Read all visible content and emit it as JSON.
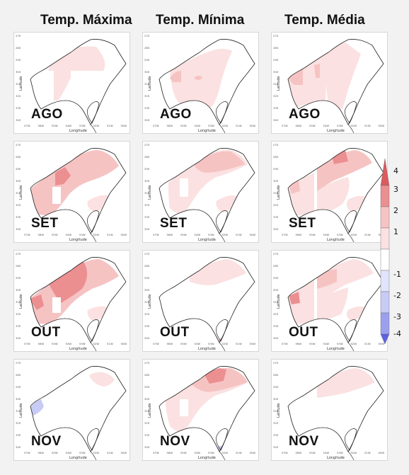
{
  "columns": [
    {
      "title": "Temp. Máxima"
    },
    {
      "title": "Temp. Mínima"
    },
    {
      "title": "Temp. Média"
    }
  ],
  "rows": [
    {
      "month": "AGO"
    },
    {
      "month": "SET"
    },
    {
      "month": "OUT"
    },
    {
      "month": "NOV"
    }
  ],
  "axis": {
    "xlabel": "Longitude",
    "ylabel": "Latitude",
    "x_ticks": [
      "57W",
      "56W",
      "55W",
      "54W",
      "53W",
      "52W",
      "51W",
      "50W"
    ],
    "y_ticks": [
      "27S",
      "28S",
      "29S",
      "30S",
      "31S",
      "32S",
      "33S",
      "34S"
    ]
  },
  "colorbar": {
    "labels": [
      "4",
      "3",
      "2",
      "1",
      "-1",
      "-2",
      "-3",
      "-4"
    ],
    "colors": {
      "warm_strong": "#dc5a5e",
      "warm_mid": "#ec8f91",
      "warm_light": "#f6c3c3",
      "warm_faint": "#fbe1e1",
      "neutral": "#ffffff",
      "cool_faint": "#e2e4fb",
      "cool_light": "#c7cbf6",
      "cool_mid": "#9aa0ee",
      "cool_strong": "#5c62e2"
    }
  }
}
